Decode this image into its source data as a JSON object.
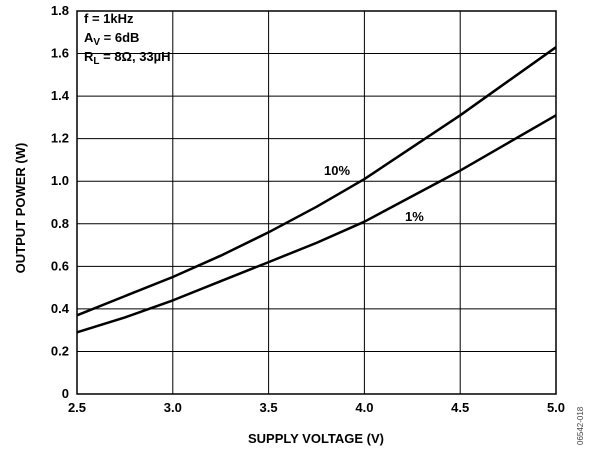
{
  "chart_data": {
    "type": "line",
    "xlabel": "SUPPLY VOLTAGE (V)",
    "ylabel": "OUTPUT POWER (W)",
    "xlim": [
      2.5,
      5.0
    ],
    "ylim": [
      0,
      1.8
    ],
    "x_ticks": [
      "2.5",
      "3.0",
      "3.5",
      "4.0",
      "4.5",
      "5.0"
    ],
    "y_ticks": [
      "0",
      "0.2",
      "0.4",
      "0.6",
      "0.8",
      "1.0",
      "1.2",
      "1.4",
      "1.6",
      "1.8"
    ],
    "grid": true,
    "conditions": [
      "f = 1kHz",
      "A_V = 6dB",
      "R_L = 8Ω, 33µH"
    ],
    "series": [
      {
        "name": "10%",
        "x": [
          2.5,
          2.75,
          3.0,
          3.25,
          3.5,
          3.75,
          4.0,
          4.25,
          4.5,
          4.75,
          5.0
        ],
        "y": [
          0.37,
          0.46,
          0.55,
          0.65,
          0.76,
          0.88,
          1.01,
          1.16,
          1.31,
          1.47,
          1.63
        ]
      },
      {
        "name": "1%",
        "x": [
          2.5,
          2.75,
          3.0,
          3.25,
          3.5,
          3.75,
          4.0,
          4.25,
          4.5,
          4.75,
          5.0
        ],
        "y": [
          0.29,
          0.36,
          0.44,
          0.53,
          0.62,
          0.71,
          0.81,
          0.93,
          1.05,
          1.18,
          1.31
        ]
      }
    ],
    "figure_code": "06542-018"
  }
}
